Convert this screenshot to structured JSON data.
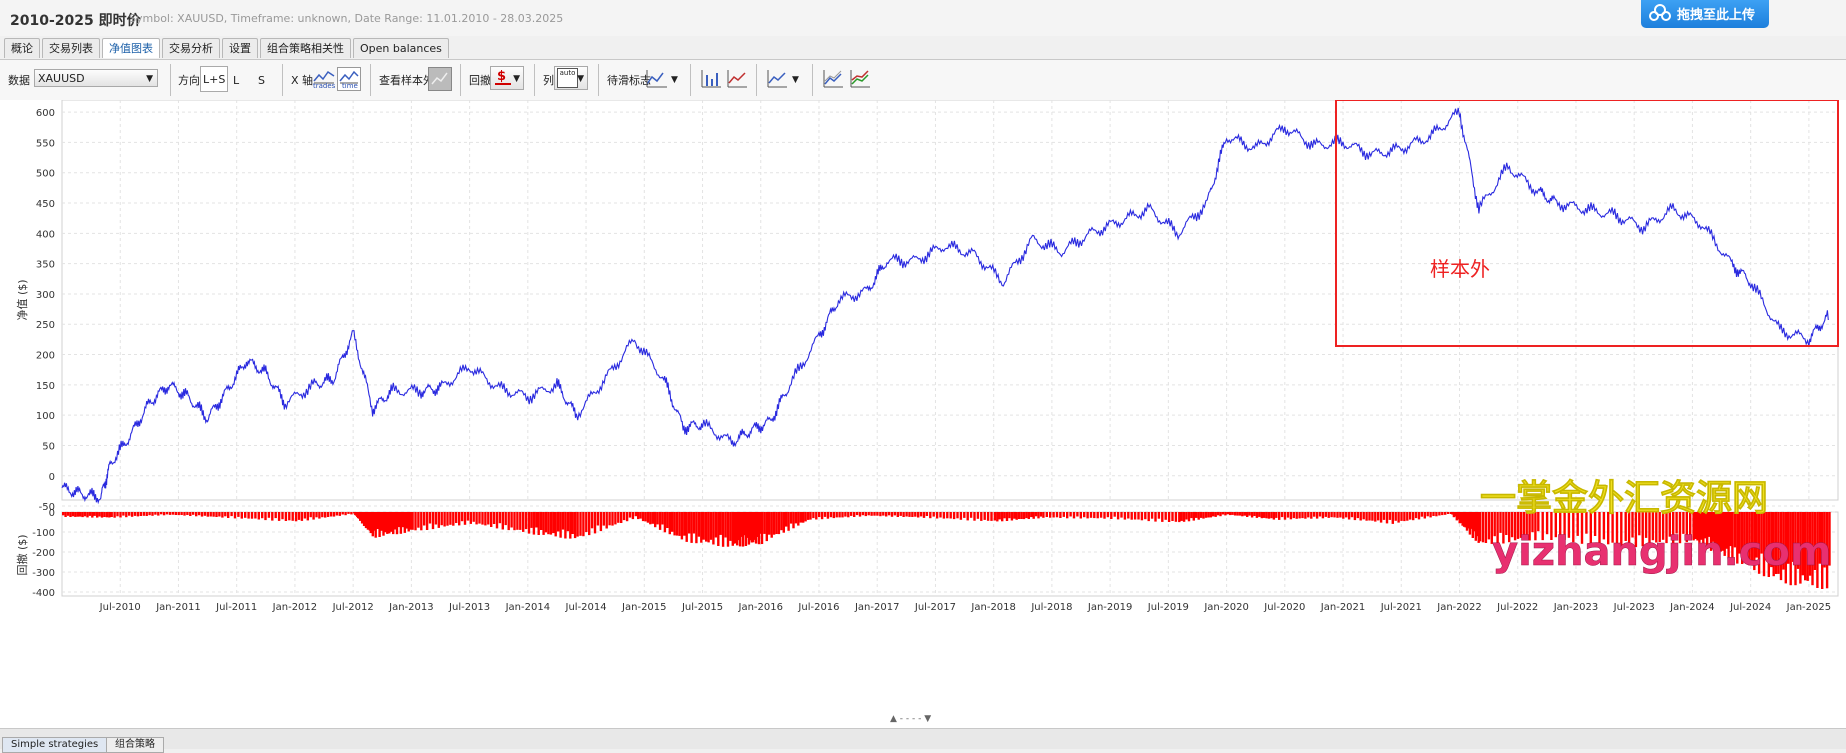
{
  "header": {
    "title": "2010-2025 即时价",
    "subtitle": "Symbol: XAUUSD, Timeframe: unknown, Date Range: 11.01.2010 - 28.03.2025",
    "upload_label": "拖拽至此上传"
  },
  "tabs": [
    {
      "label": "概论"
    },
    {
      "label": "交易列表"
    },
    {
      "label": "净值图表",
      "active": true
    },
    {
      "label": "交易分析"
    },
    {
      "label": "设置"
    },
    {
      "label": "组合策略相关性"
    },
    {
      "label": "Open balances"
    }
  ],
  "toolbar": {
    "data_label": "数据",
    "symbol_value": "XAUUSD",
    "direction_label": "方向",
    "direction_options": [
      "L+S",
      "L",
      "S"
    ],
    "xaxis_label": "X 轴",
    "xaxis_trades": "trades",
    "xaxis_time": "time",
    "oos_label": "查看样本外",
    "drawdown_label": "回撤",
    "columns_label": "列",
    "auto_label": "auto",
    "smooth_label": "待滑标志"
  },
  "footer": {
    "tab1": "Simple strategies",
    "tab2": "组合策略"
  },
  "annotation": {
    "label": "样本外",
    "color": "#ee2222"
  },
  "watermark": {
    "line1": "一掌金外汇资源网",
    "line2": "yizhangjin.com"
  },
  "colors": {
    "equity_line": "#2a2adf",
    "drawdown_fill": "#ff0000",
    "annotation_box": "#ee2222",
    "watermark1": "#f0e020",
    "watermark2": "#e83070"
  },
  "chart_data": {
    "type": "line",
    "x_tick_labels": [
      "Jul-2010",
      "Jan-2011",
      "Jul-2011",
      "Jan-2012",
      "Jul-2012",
      "Jan-2013",
      "Jul-2013",
      "Jan-2014",
      "Jul-2014",
      "Jan-2015",
      "Jul-2015",
      "Jan-2016",
      "Jul-2016",
      "Jan-2017",
      "Jul-2017",
      "Jan-2018",
      "Jul-2018",
      "Jan-2019",
      "Jul-2019",
      "Jan-2020",
      "Jul-2020",
      "Jan-2021",
      "Jul-2021",
      "Jan-2022",
      "Jul-2022",
      "Jan-2023",
      "Jul-2023",
      "Jan-2024",
      "Jul-2024",
      "Jan-2025"
    ],
    "equity": {
      "ylabel": "净值 ($)",
      "ylim": [
        -40,
        620
      ],
      "yticks": [
        -50,
        0,
        50,
        100,
        150,
        200,
        250,
        300,
        350,
        400,
        450,
        500,
        550,
        600
      ],
      "points": [
        [
          "2010-01",
          -20
        ],
        [
          "2010-03",
          -30
        ],
        [
          "2010-05",
          -35
        ],
        [
          "2010-06",
          20
        ],
        [
          "2010-08",
          65
        ],
        [
          "2010-10",
          120
        ],
        [
          "2010-12",
          150
        ],
        [
          "2011-02",
          130
        ],
        [
          "2011-04",
          95
        ],
        [
          "2011-06",
          140
        ],
        [
          "2011-08",
          190
        ],
        [
          "2011-10",
          170
        ],
        [
          "2011-12",
          120
        ],
        [
          "2012-03",
          150
        ],
        [
          "2012-05",
          160
        ],
        [
          "2012-07",
          235
        ],
        [
          "2012-09",
          110
        ],
        [
          "2012-11",
          140
        ],
        [
          "2013-02",
          140
        ],
        [
          "2013-04",
          145
        ],
        [
          "2013-07",
          180
        ],
        [
          "2013-10",
          145
        ],
        [
          "2014-01",
          130
        ],
        [
          "2014-04",
          150
        ],
        [
          "2014-06",
          100
        ],
        [
          "2014-09",
          160
        ],
        [
          "2014-12",
          225
        ],
        [
          "2015-03",
          160
        ],
        [
          "2015-05",
          80
        ],
        [
          "2015-07",
          85
        ],
        [
          "2015-10",
          55
        ],
        [
          "2015-12",
          75
        ],
        [
          "2016-02",
          90
        ],
        [
          "2016-04",
          150
        ],
        [
          "2016-07",
          230
        ],
        [
          "2016-09",
          290
        ],
        [
          "2016-12",
          305
        ],
        [
          "2017-02",
          355
        ],
        [
          "2017-05",
          355
        ],
        [
          "2017-08",
          380
        ],
        [
          "2017-11",
          365
        ],
        [
          "2018-02",
          320
        ],
        [
          "2018-05",
          390
        ],
        [
          "2018-08",
          370
        ],
        [
          "2018-11",
          400
        ],
        [
          "2019-02",
          420
        ],
        [
          "2019-05",
          440
        ],
        [
          "2019-08",
          400
        ],
        [
          "2019-11",
          450
        ],
        [
          "2020-01",
          560
        ],
        [
          "2020-04",
          540
        ],
        [
          "2020-07",
          575
        ],
        [
          "2020-10",
          545
        ],
        [
          "2021-01",
          550
        ],
        [
          "2021-04",
          530
        ],
        [
          "2021-07",
          540
        ],
        [
          "2021-10",
          560
        ],
        [
          "2022-01",
          600
        ],
        [
          "2022-03",
          440
        ],
        [
          "2022-06",
          510
        ],
        [
          "2022-09",
          470
        ],
        [
          "2022-11",
          450
        ],
        [
          "2023-02",
          440
        ],
        [
          "2023-05",
          430
        ],
        [
          "2023-08",
          410
        ],
        [
          "2023-11",
          440
        ],
        [
          "2024-02",
          415
        ],
        [
          "2024-05",
          350
        ],
        [
          "2024-07",
          320
        ],
        [
          "2024-10",
          240
        ],
        [
          "2025-01",
          225
        ],
        [
          "2025-03",
          265
        ]
      ]
    },
    "drawdown": {
      "ylabel": "回撤 ($)",
      "ylim": [
        -420,
        0
      ],
      "yticks": [
        0,
        -100,
        -200,
        -300,
        -400
      ],
      "points": [
        [
          "2010-01",
          -25
        ],
        [
          "2010-06",
          -30
        ],
        [
          "2010-12",
          -15
        ],
        [
          "2011-06",
          -30
        ],
        [
          "2012-01",
          -50
        ],
        [
          "2012-07",
          -10
        ],
        [
          "2012-09",
          -130
        ],
        [
          "2013-01",
          -100
        ],
        [
          "2013-07",
          -60
        ],
        [
          "2014-01",
          -110
        ],
        [
          "2014-06",
          -140
        ],
        [
          "2014-12",
          -30
        ],
        [
          "2015-05",
          -150
        ],
        [
          "2015-10",
          -180
        ],
        [
          "2016-01",
          -160
        ],
        [
          "2016-06",
          -40
        ],
        [
          "2016-12",
          -20
        ],
        [
          "2017-06",
          -30
        ],
        [
          "2018-01",
          -50
        ],
        [
          "2018-06",
          -30
        ],
        [
          "2019-01",
          -35
        ],
        [
          "2019-08",
          -55
        ],
        [
          "2020-01",
          -15
        ],
        [
          "2020-06",
          -40
        ],
        [
          "2020-12",
          -30
        ],
        [
          "2021-06",
          -60
        ],
        [
          "2021-12",
          -10
        ],
        [
          "2022-03",
          -170
        ],
        [
          "2022-09",
          -140
        ],
        [
          "2023-06",
          -180
        ],
        [
          "2024-01",
          -150
        ],
        [
          "2024-05",
          -250
        ],
        [
          "2024-10",
          -360
        ],
        [
          "2025-03",
          -390
        ]
      ]
    }
  }
}
